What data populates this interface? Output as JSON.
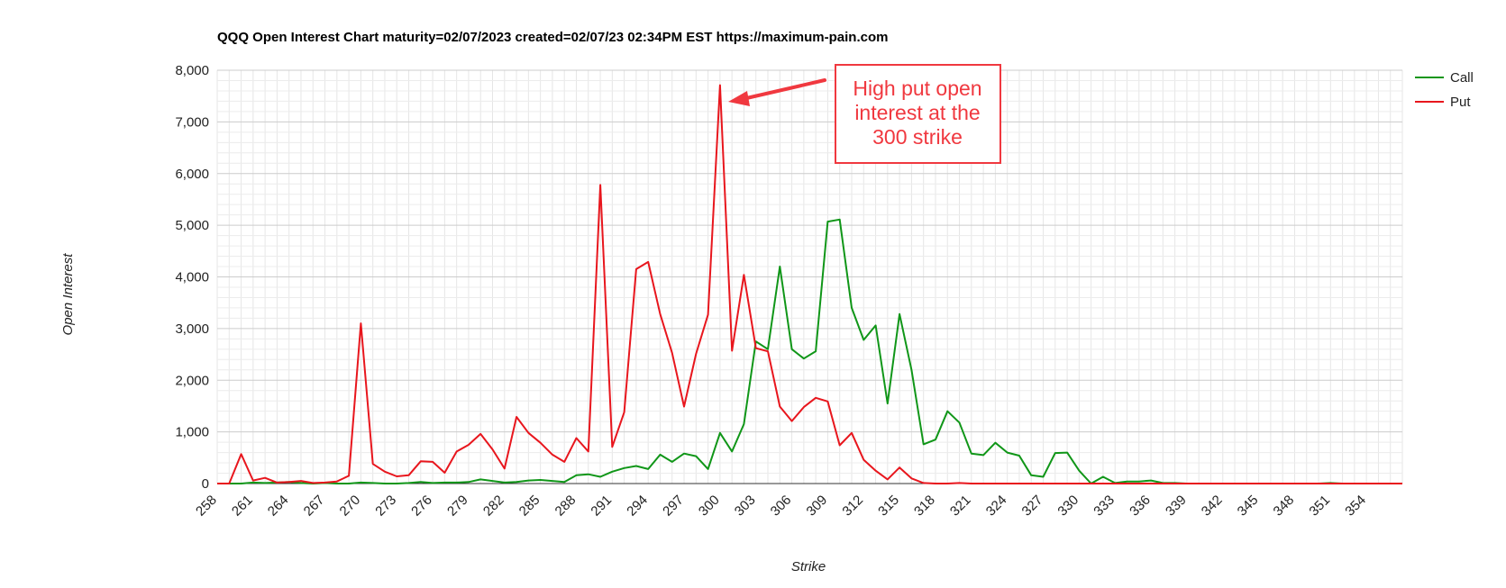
{
  "chart_data": {
    "type": "line",
    "title": "QQQ Open Interest Chart maturity=02/07/2023 created=02/07/23 02:34PM EST https://maximum-pain.com",
    "xlabel": "Strike",
    "ylabel": "Open Interest",
    "ylim": [
      0,
      8000
    ],
    "yticks": [
      "0",
      "1,000",
      "2,000",
      "3,000",
      "4,000",
      "5,000",
      "6,000",
      "7,000",
      "8,000"
    ],
    "xticks": [
      "258",
      "261",
      "264",
      "267",
      "270",
      "273",
      "276",
      "279",
      "282",
      "285",
      "288",
      "291",
      "294",
      "297",
      "300",
      "303",
      "306",
      "309",
      "312",
      "315",
      "318",
      "321",
      "324",
      "327",
      "330",
      "333",
      "336",
      "339",
      "342",
      "345",
      "348",
      "351",
      "354"
    ],
    "legend_position": "right",
    "grid": true,
    "x": [
      258,
      259,
      260,
      261,
      262,
      263,
      264,
      265,
      266,
      267,
      268,
      269,
      270,
      271,
      272,
      273,
      274,
      275,
      276,
      277,
      278,
      279,
      280,
      281,
      282,
      283,
      284,
      285,
      286,
      287,
      288,
      289,
      290,
      291,
      292,
      293,
      294,
      295,
      296,
      297,
      298,
      299,
      300,
      301,
      302,
      303,
      304,
      305,
      306,
      307,
      308,
      309,
      310,
      311,
      312,
      313,
      314,
      315,
      316,
      317,
      318,
      319,
      320,
      321,
      322,
      323,
      324,
      325,
      326,
      327,
      328,
      329,
      330,
      331,
      332,
      333,
      334,
      335,
      336,
      337,
      338,
      339,
      340,
      341,
      342,
      343,
      344,
      345,
      346,
      347,
      348,
      349,
      350,
      351,
      352,
      353,
      354,
      355,
      356,
      357
    ],
    "series": [
      {
        "name": "Call",
        "color": "#109618",
        "values": [
          0,
          0,
          0,
          20,
          10,
          20,
          30,
          10,
          0,
          10,
          0,
          0,
          20,
          10,
          0,
          0,
          10,
          30,
          10,
          20,
          20,
          30,
          80,
          50,
          20,
          30,
          60,
          70,
          50,
          30,
          160,
          180,
          130,
          230,
          300,
          340,
          280,
          560,
          420,
          580,
          530,
          280,
          980,
          620,
          1150,
          2750,
          2600,
          4200,
          2600,
          2420,
          2560,
          5070,
          5110,
          3400,
          2780,
          3060,
          1550,
          3280,
          2200,
          760,
          850,
          1400,
          1180,
          580,
          550,
          790,
          600,
          540,
          160,
          130,
          590,
          600,
          250,
          0,
          130,
          10,
          40,
          40,
          60,
          10,
          10,
          0,
          0,
          0,
          0,
          0,
          0,
          0,
          0,
          0,
          0,
          0,
          0,
          10,
          0,
          0,
          0,
          0,
          0,
          0
        ]
      },
      {
        "name": "Put",
        "color": "#e8161d",
        "values": [
          0,
          0,
          570,
          60,
          110,
          20,
          30,
          50,
          10,
          20,
          40,
          150,
          3100,
          380,
          230,
          140,
          160,
          430,
          420,
          210,
          620,
          750,
          960,
          660,
          290,
          1290,
          980,
          790,
          560,
          420,
          880,
          620,
          5780,
          710,
          1380,
          4150,
          4290,
          3280,
          2530,
          1490,
          2510,
          3270,
          7710,
          2570,
          4040,
          2620,
          2560,
          1490,
          1210,
          1480,
          1660,
          1590,
          740,
          980,
          460,
          250,
          80,
          310,
          100,
          10,
          0,
          0,
          10,
          0,
          0,
          0,
          0,
          0,
          0,
          0,
          0,
          0,
          0,
          0,
          0,
          0,
          0,
          0,
          0,
          0,
          0,
          0,
          0,
          0,
          0,
          0,
          0,
          0,
          0,
          0,
          0,
          0,
          0,
          0,
          0,
          0,
          0,
          0,
          0,
          0
        ]
      }
    ],
    "annotation": {
      "text_lines": [
        "High put open",
        "interest at the",
        "300 strike"
      ],
      "color": "#f0383f"
    }
  }
}
